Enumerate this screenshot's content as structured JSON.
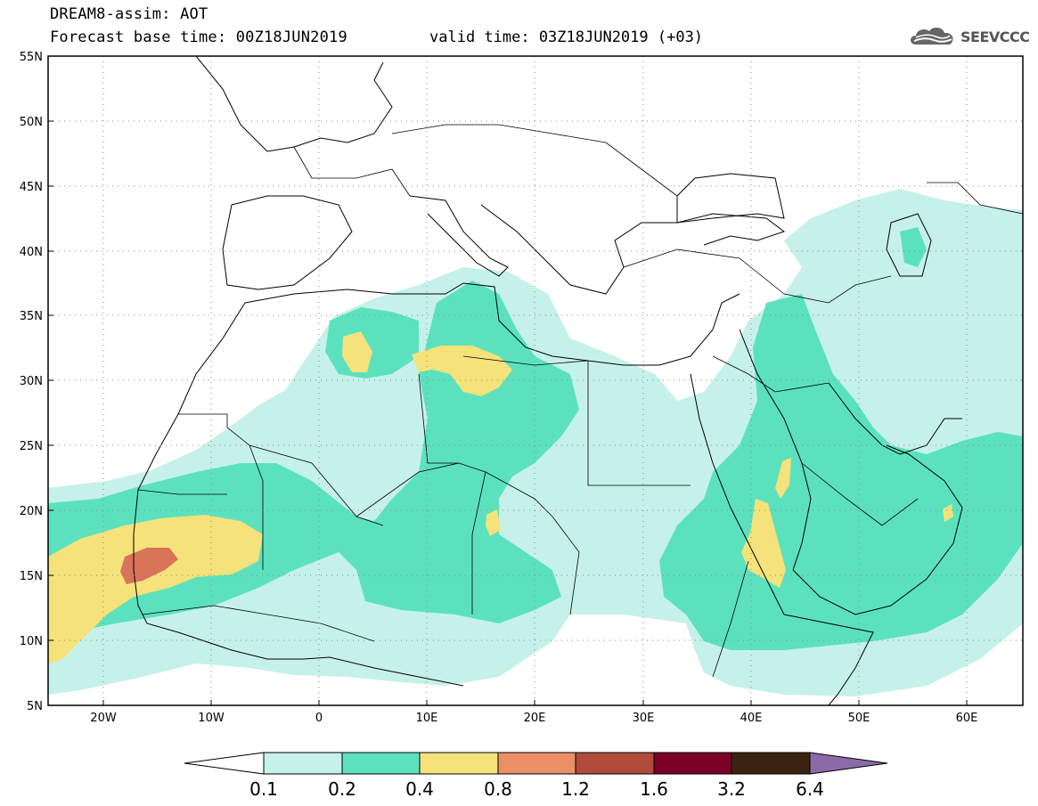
{
  "header": {
    "title": "DREAM8-assim: AOT",
    "base_time": "Forecast base time: 00Z18JUN2019",
    "valid_time": "valid time: 03Z18JUN2019 (+03)",
    "logo_text": "SEEVCCC",
    "logo_icon": "cloud-icon"
  },
  "map": {
    "lat_range": [
      5,
      55
    ],
    "lon_range": [
      -25,
      65
    ],
    "lat_labels": [
      "55N",
      "50N",
      "45N",
      "40N",
      "35N",
      "30N",
      "25N",
      "20N",
      "15N",
      "10N",
      "5N"
    ],
    "lat_values": [
      55,
      50,
      45,
      40,
      35,
      30,
      25,
      20,
      15,
      10,
      5
    ],
    "lon_labels": [
      "20W",
      "10W",
      "0",
      "10E",
      "20E",
      "30E",
      "40E",
      "50E",
      "60E"
    ],
    "lon_values": [
      -20,
      -10,
      0,
      10,
      20,
      30,
      40,
      50,
      60
    ],
    "gridlines": "dotted"
  },
  "colorbar": {
    "labels": [
      "0.1",
      "0.2",
      "0.4",
      "0.8",
      "1.2",
      "1.6",
      "3.2",
      "6.4"
    ],
    "colors": [
      "#ffffff",
      "#c6f1ea",
      "#5ce1be",
      "#f5e27a",
      "#ea8f66",
      "#b04b3c",
      "#7a0028",
      "#3b2412",
      "#8c6aa8"
    ]
  }
}
